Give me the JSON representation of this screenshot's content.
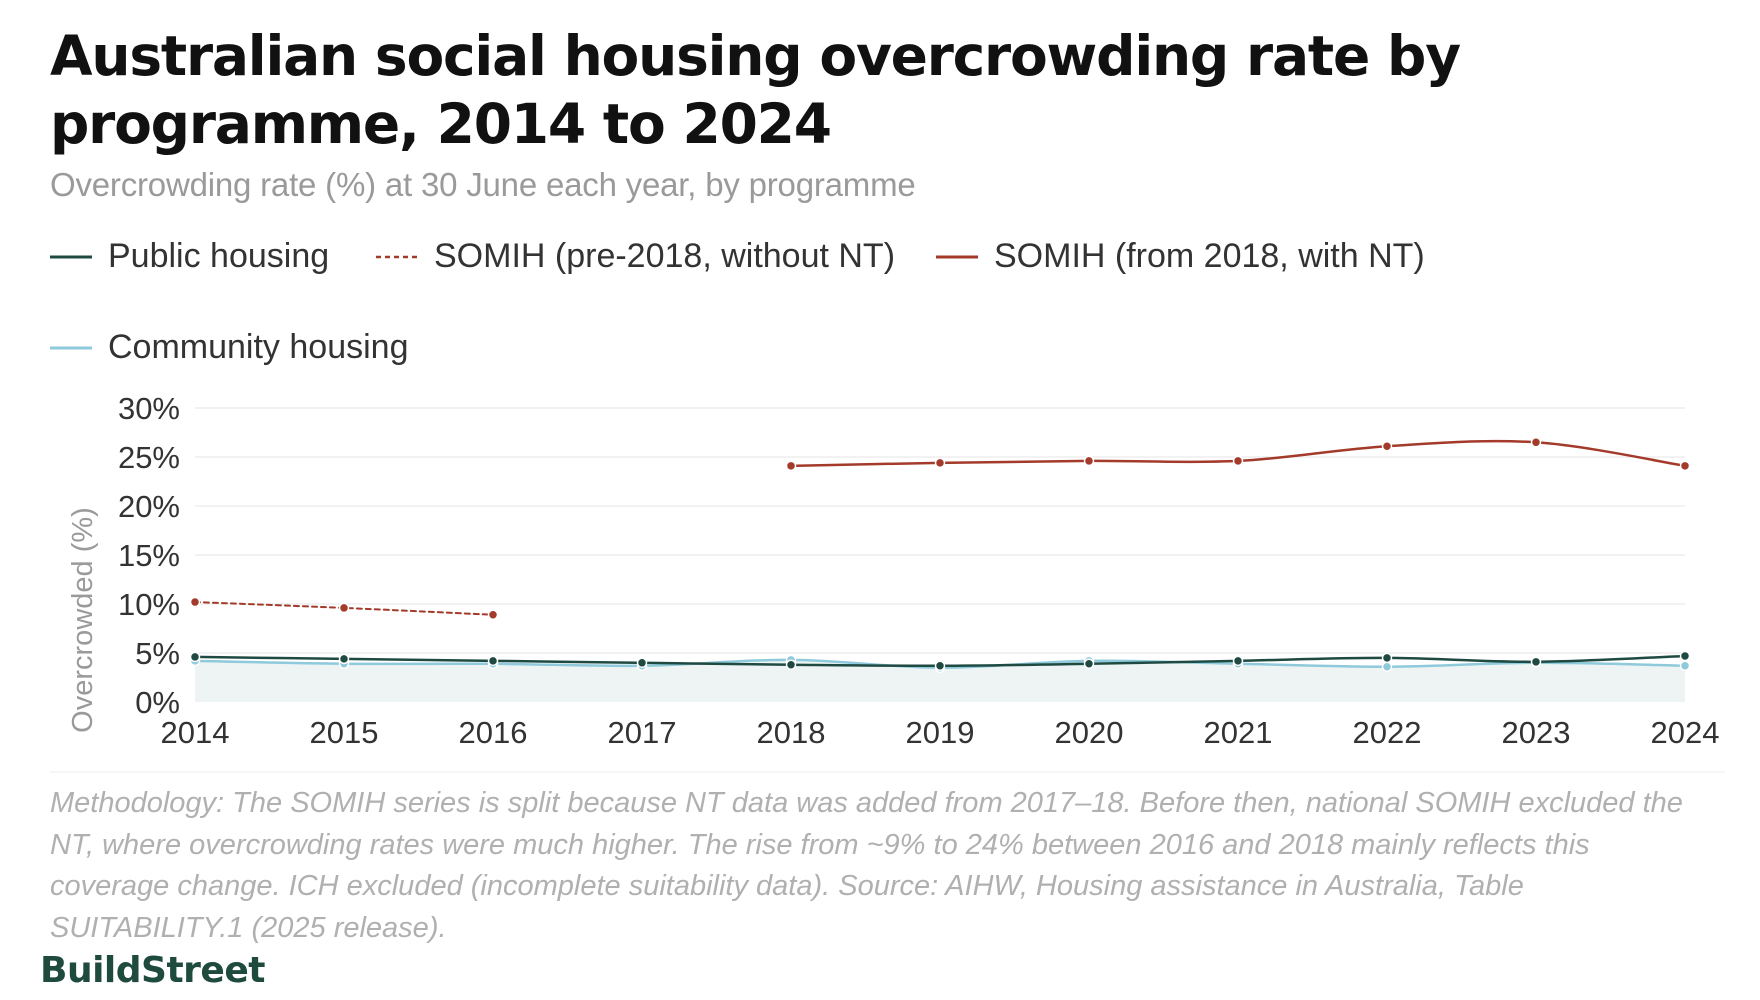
{
  "chart_data": {
    "type": "line",
    "title": "Australian social housing overcrowding rate by programme, 2014 to 2024",
    "subtitle": "Overcrowding rate (%) at 30 June each year, by programme",
    "xlabel": "",
    "ylabel": "Overcrowded (%)",
    "ylim": [
      0,
      30
    ],
    "y_ticks": [
      "0%",
      "5%",
      "10%",
      "15%",
      "20%",
      "25%",
      "30%"
    ],
    "x": [
      "2014",
      "2015",
      "2016",
      "2017",
      "2018",
      "2019",
      "2020",
      "2021",
      "2022",
      "2023",
      "2024"
    ],
    "grid": true,
    "legend_position": "top-left",
    "series": [
      {
        "name": "Public housing",
        "color": "#1f4a42",
        "style": "solid",
        "values": [
          4.6,
          4.4,
          4.2,
          4.0,
          3.8,
          3.7,
          3.9,
          4.2,
          4.5,
          4.1,
          4.7
        ]
      },
      {
        "name": "SOMIH (pre-2018, without NT)",
        "color": "#a33a2a",
        "style": "dashed",
        "values": [
          10.2,
          9.6,
          8.9,
          null,
          null,
          null,
          null,
          null,
          null,
          null,
          null
        ]
      },
      {
        "name": "SOMIH (from 2018, with NT)",
        "color": "#a33a2a",
        "style": "solid",
        "values": [
          null,
          null,
          null,
          null,
          24.1,
          24.4,
          24.6,
          24.6,
          26.1,
          26.5,
          24.1
        ]
      },
      {
        "name": "Community housing",
        "color": "#8ecadb",
        "style": "solid",
        "values": [
          4.2,
          3.9,
          3.9,
          3.7,
          4.3,
          3.5,
          4.2,
          3.9,
          3.6,
          4.0,
          3.7
        ]
      }
    ]
  },
  "footer": {
    "methodology": "Methodology: The SOMIH series is split because NT data was added from 2017–18. Before then, national SOMIH excluded the NT, where overcrowding rates were much higher. The rise from ~9% to 24% between 2016 and 2018 mainly reflects this coverage change. ICH excluded (incomplete suitability data). Source: AIHW, Housing assistance in Australia, Table SUITABILITY.1 (2025 release).",
    "brand": "BuildStreet"
  },
  "colors": {
    "brand": "#1f4a3e",
    "grid": "#e6e6e6",
    "area_fill": "#eef4f4"
  }
}
